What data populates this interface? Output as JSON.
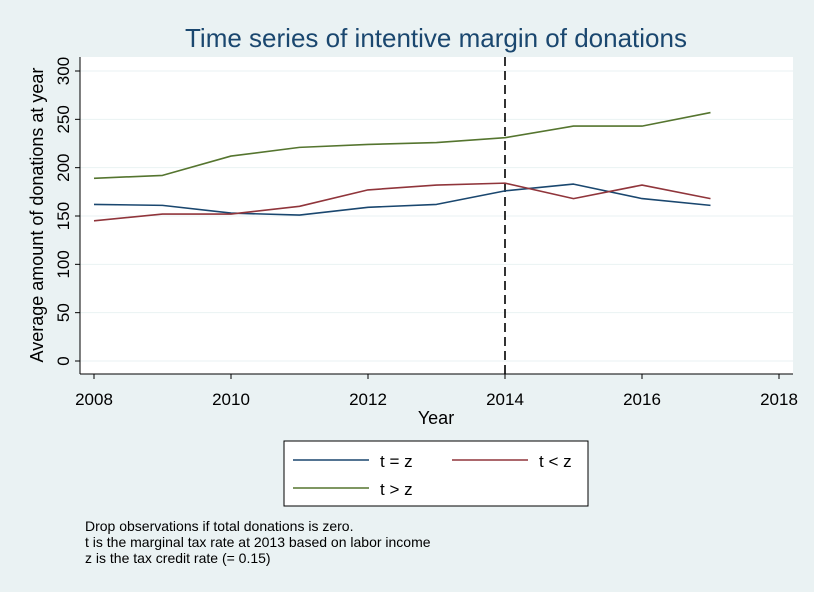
{
  "chart_data": {
    "type": "line",
    "title": "Time series of intentive margin of donations",
    "xlabel": "Year",
    "ylabel": "Average amount of donations at year",
    "xlim": [
      2008,
      2018
    ],
    "ylim": [
      0,
      300
    ],
    "x_ticks": [
      2008,
      2010,
      2012,
      2014,
      2016,
      2018
    ],
    "y_ticks": [
      0,
      50,
      100,
      150,
      200,
      250,
      300
    ],
    "grid": "horizontal",
    "vline": {
      "x": 2014,
      "style": "dashed"
    },
    "legend_position": "below",
    "x": [
      2008,
      2009,
      2010,
      2011,
      2012,
      2013,
      2014,
      2015,
      2016,
      2017
    ],
    "series": [
      {
        "name": "t = z",
        "color": "#1a476f",
        "values": [
          162,
          161,
          153,
          151,
          159,
          162,
          176,
          183,
          168,
          161
        ]
      },
      {
        "name": "t < z",
        "color": "#90353b",
        "values": [
          145,
          152,
          152,
          160,
          177,
          182,
          184,
          168,
          182,
          168
        ]
      },
      {
        "name": "t > z",
        "color": "#55752f",
        "values": [
          189,
          192,
          212,
          221,
          224,
          226,
          231,
          243,
          243,
          257
        ]
      }
    ],
    "notes": [
      "Drop observations if total donations is zero.",
      "t is the marginal tax rate at 2013 based on labor income",
      "z is the tax credit rate (= 0.15)"
    ]
  }
}
